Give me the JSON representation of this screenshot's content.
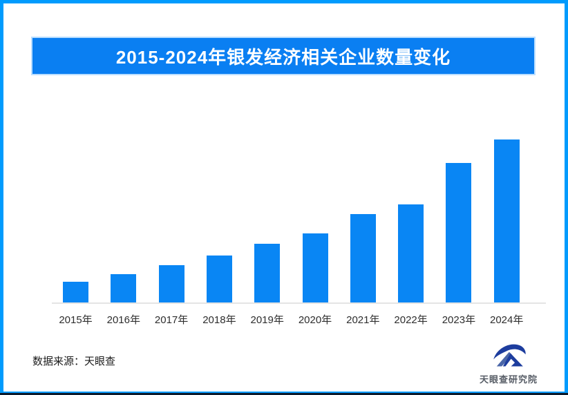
{
  "frame": {
    "border_color": "#019bfd",
    "bottom_strip_color": "#0c1a2b"
  },
  "title_banner": {
    "text": "2015-2024年银发经济相关企业数量变化",
    "bg_color": "#0a7ff2",
    "text_color": "#ffffff"
  },
  "chart_data": {
    "type": "bar",
    "title": "2015-2024年银发经济相关企业数量变化",
    "categories": [
      "2015年",
      "2016年",
      "2017年",
      "2018年",
      "2019年",
      "2020年",
      "2021年",
      "2022年",
      "2023年",
      "2024年"
    ],
    "values": [
      12.7,
      17.4,
      22.9,
      28.8,
      36.0,
      42.4,
      54.2,
      60.2,
      85.6,
      100
    ],
    "units": "relative bar height, % of tallest bar (no numeric value labels or y-axis shown in image)",
    "xlabel": "",
    "ylabel": "",
    "grid": false,
    "legend": false,
    "bar_color": "#0986f4",
    "axis_line_color": "#e4e4e4",
    "label_color": "#2d2d2d"
  },
  "footer": {
    "source_label": "数据来源：天眼查",
    "logo_text": "天眼查研究院",
    "logo_primary_color": "#1d3d9e",
    "logo_secondary_color": "#4a66a8",
    "logo_text_color": "#575d66"
  }
}
